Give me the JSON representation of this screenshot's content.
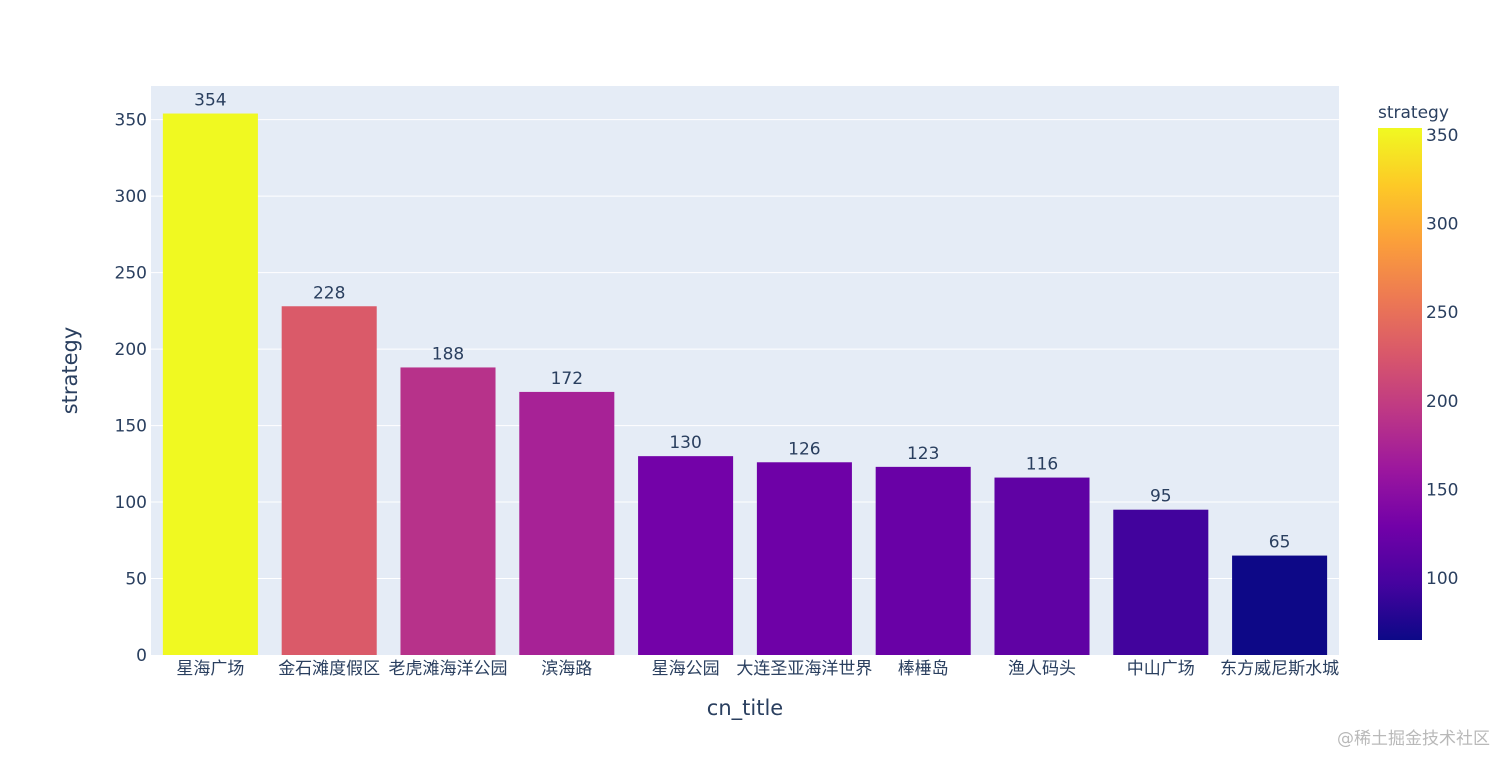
{
  "chart_data": {
    "type": "bar",
    "categories": [
      "星海广场",
      "金石滩度假区",
      "老虎滩海洋公园",
      "滨海路",
      "星海公园",
      "大连圣亚海洋世界",
      "棒棰岛",
      "渔人码头",
      "中山广场",
      "东方威尼斯水城"
    ],
    "values": [
      354,
      228,
      188,
      172,
      130,
      126,
      123,
      116,
      95,
      65
    ],
    "data_labels": [
      "354",
      "228",
      "188",
      "172",
      "130",
      "126",
      "123",
      "116",
      "95",
      "65"
    ],
    "xlabel": "cn_title",
    "ylabel": "strategy",
    "ylim": [
      0,
      372
    ],
    "yticks": [
      0,
      50,
      100,
      150,
      200,
      250,
      300,
      350
    ],
    "grid": true,
    "plot_bgcolor": "#e5ecf6",
    "colorbar": {
      "title": "strategy",
      "range": [
        65,
        354
      ],
      "ticks": [
        100,
        150,
        200,
        250,
        300,
        350
      ],
      "colorscale": [
        "#0d0887",
        "#46039f",
        "#7201a8",
        "#9c179e",
        "#bd3786",
        "#d8576b",
        "#ed7953",
        "#fb9f3a",
        "#fdca26",
        "#f0f921"
      ]
    }
  },
  "watermark": "@稀土掘金技术社区"
}
